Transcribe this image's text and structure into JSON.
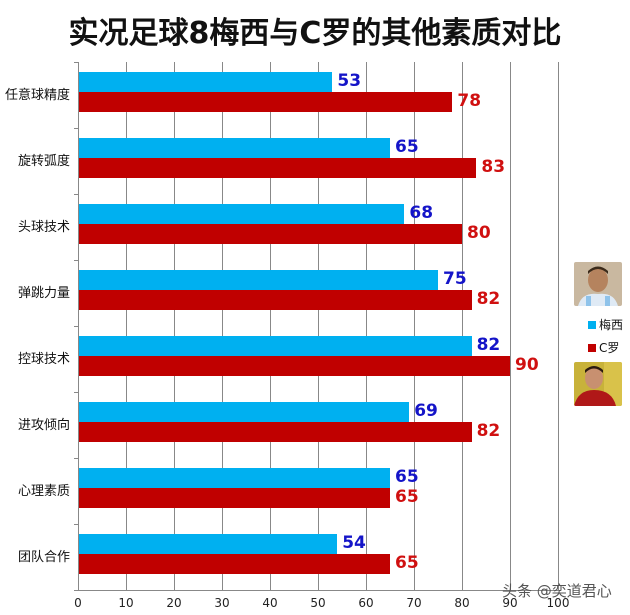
{
  "title": "实况足球8梅西与C罗的其他素质对比",
  "legend": {
    "series": [
      {
        "name": "梅西",
        "color": "#00b0f0",
        "label_color": "#1414c8",
        "photo": "messi-photo"
      },
      {
        "name": "C罗",
        "color": "#c00000",
        "label_color": "#d01010",
        "photo": "ronaldo-photo"
      }
    ]
  },
  "watermark": "头条 @奕道君心",
  "x_ticks": [
    "0",
    "10",
    "20",
    "30",
    "40",
    "50",
    "60",
    "70",
    "80",
    "90",
    "100"
  ],
  "chart_data": {
    "type": "bar",
    "orientation": "horizontal",
    "title": "实况足球8梅西与C罗的其他素质对比",
    "categories": [
      "任意球精度",
      "旋转弧度",
      "头球技术",
      "弹跳力量",
      "控球技术",
      "进攻倾向",
      "心理素质",
      "团队合作"
    ],
    "series": [
      {
        "name": "梅西",
        "color": "#00b0f0",
        "values": [
          53,
          65,
          68,
          75,
          82,
          69,
          65,
          54
        ]
      },
      {
        "name": "C罗",
        "color": "#c00000",
        "values": [
          78,
          83,
          80,
          82,
          90,
          82,
          65,
          65
        ]
      }
    ],
    "xlabel": "",
    "ylabel": "",
    "xlim": [
      0,
      100
    ],
    "x_ticks": [
      0,
      10,
      20,
      30,
      40,
      50,
      60,
      70,
      80,
      90,
      100
    ],
    "grid": true,
    "legend_position": "right",
    "data_labels": true
  }
}
